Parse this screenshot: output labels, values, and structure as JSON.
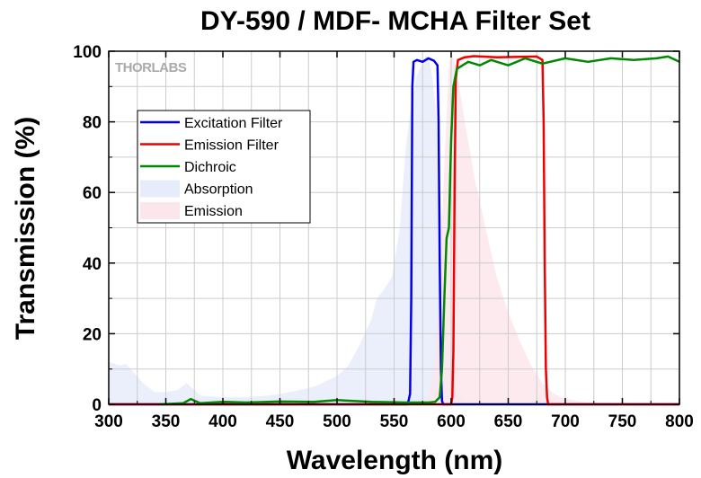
{
  "brand": "THORLABS",
  "chart_data": {
    "type": "line",
    "title": "DY-590 / MDF- MCHA Filter Set",
    "xlabel": "Wavelength (nm)",
    "ylabel": "Transmission (%)",
    "xlim": [
      300,
      800
    ],
    "ylim": [
      0,
      100
    ],
    "x_ticks": [
      "300",
      "350",
      "400",
      "450",
      "500",
      "550",
      "600",
      "650",
      "700",
      "750",
      "800"
    ],
    "y_ticks": [
      "0",
      "20",
      "40",
      "60",
      "80",
      "100"
    ],
    "grid": true,
    "legend_position": "upper-left",
    "series": [
      {
        "name": "Excitation Filter",
        "kind": "line",
        "color": "#0000ee",
        "points": [
          [
            300,
            0
          ],
          [
            562,
            0
          ],
          [
            564,
            3
          ],
          [
            565,
            30
          ],
          [
            566,
            90
          ],
          [
            567,
            97
          ],
          [
            570,
            97.5
          ],
          [
            575,
            97
          ],
          [
            580,
            98
          ],
          [
            585,
            97.3
          ],
          [
            588,
            96
          ],
          [
            589,
            80
          ],
          [
            590,
            40
          ],
          [
            591,
            10
          ],
          [
            592,
            1
          ],
          [
            593,
            0
          ],
          [
            800,
            0
          ]
        ]
      },
      {
        "name": "Emission Filter",
        "kind": "line",
        "color": "#ee0000",
        "points": [
          [
            300,
            0
          ],
          [
            600,
            0
          ],
          [
            601,
            2
          ],
          [
            602,
            15
          ],
          [
            603,
            60
          ],
          [
            604,
            92
          ],
          [
            606,
            97.5
          ],
          [
            612,
            98.3
          ],
          [
            620,
            98.6
          ],
          [
            640,
            98.3
          ],
          [
            660,
            98.4
          ],
          [
            675,
            98.5
          ],
          [
            680,
            97.5
          ],
          [
            681,
            80
          ],
          [
            682,
            40
          ],
          [
            683,
            10
          ],
          [
            684,
            2
          ],
          [
            685,
            0
          ],
          [
            800,
            0
          ]
        ]
      },
      {
        "name": "Dichroic",
        "kind": "line",
        "color": "#008800",
        "points": [
          [
            345,
            0
          ],
          [
            365,
            0.3
          ],
          [
            372,
            1.5
          ],
          [
            380,
            0.3
          ],
          [
            400,
            0.7
          ],
          [
            420,
            0.5
          ],
          [
            450,
            0.8
          ],
          [
            480,
            0.7
          ],
          [
            500,
            1.2
          ],
          [
            530,
            0.7
          ],
          [
            560,
            0.5
          ],
          [
            580,
            0.5
          ],
          [
            586,
            0.7
          ],
          [
            590,
            2
          ],
          [
            592,
            10
          ],
          [
            594,
            30
          ],
          [
            596,
            47
          ],
          [
            598,
            50
          ],
          [
            600,
            75
          ],
          [
            602,
            90
          ],
          [
            605,
            95
          ],
          [
            615,
            97
          ],
          [
            625,
            96
          ],
          [
            635,
            97.5
          ],
          [
            650,
            96
          ],
          [
            665,
            98
          ],
          [
            680,
            96.5
          ],
          [
            700,
            98
          ],
          [
            720,
            97
          ],
          [
            740,
            98
          ],
          [
            760,
            97.5
          ],
          [
            780,
            98
          ],
          [
            790,
            98.5
          ],
          [
            800,
            97
          ]
        ]
      },
      {
        "name": "Absorption",
        "kind": "area",
        "color": "#e6ecfa",
        "points": [
          [
            300,
            12
          ],
          [
            310,
            11
          ],
          [
            315,
            11.5
          ],
          [
            322,
            9
          ],
          [
            330,
            6
          ],
          [
            340,
            3.5
          ],
          [
            350,
            3.5
          ],
          [
            360,
            4
          ],
          [
            368,
            6
          ],
          [
            375,
            4
          ],
          [
            380,
            2.5
          ],
          [
            400,
            2
          ],
          [
            420,
            2
          ],
          [
            440,
            2.5
          ],
          [
            460,
            3.5
          ],
          [
            480,
            5
          ],
          [
            500,
            8
          ],
          [
            510,
            11
          ],
          [
            520,
            17
          ],
          [
            530,
            24
          ],
          [
            535,
            30
          ],
          [
            540,
            32
          ],
          [
            548,
            36
          ],
          [
            555,
            50
          ],
          [
            560,
            72
          ],
          [
            565,
            85
          ],
          [
            570,
            93
          ],
          [
            575,
            97
          ],
          [
            578,
            99
          ],
          [
            580,
            98
          ],
          [
            583,
            94
          ],
          [
            586,
            85
          ],
          [
            589,
            70
          ],
          [
            592,
            52
          ],
          [
            595,
            32
          ],
          [
            598,
            17
          ],
          [
            601,
            8
          ],
          [
            605,
            3
          ],
          [
            612,
            1
          ],
          [
            625,
            0.5
          ],
          [
            650,
            0.3
          ],
          [
            800,
            0
          ]
        ]
      },
      {
        "name": "Emission",
        "kind": "area",
        "color": "#fbe6ec",
        "points": [
          [
            575,
            0
          ],
          [
            580,
            2
          ],
          [
            585,
            10
          ],
          [
            590,
            35
          ],
          [
            595,
            75
          ],
          [
            598,
            95
          ],
          [
            600,
            100
          ],
          [
            603,
            97
          ],
          [
            607,
            90
          ],
          [
            612,
            80
          ],
          [
            620,
            65
          ],
          [
            630,
            50
          ],
          [
            640,
            36
          ],
          [
            650,
            26
          ],
          [
            660,
            18
          ],
          [
            670,
            11
          ],
          [
            680,
            6
          ],
          [
            690,
            3
          ],
          [
            700,
            1.5
          ],
          [
            720,
            0.5
          ],
          [
            800,
            0
          ]
        ]
      }
    ]
  }
}
